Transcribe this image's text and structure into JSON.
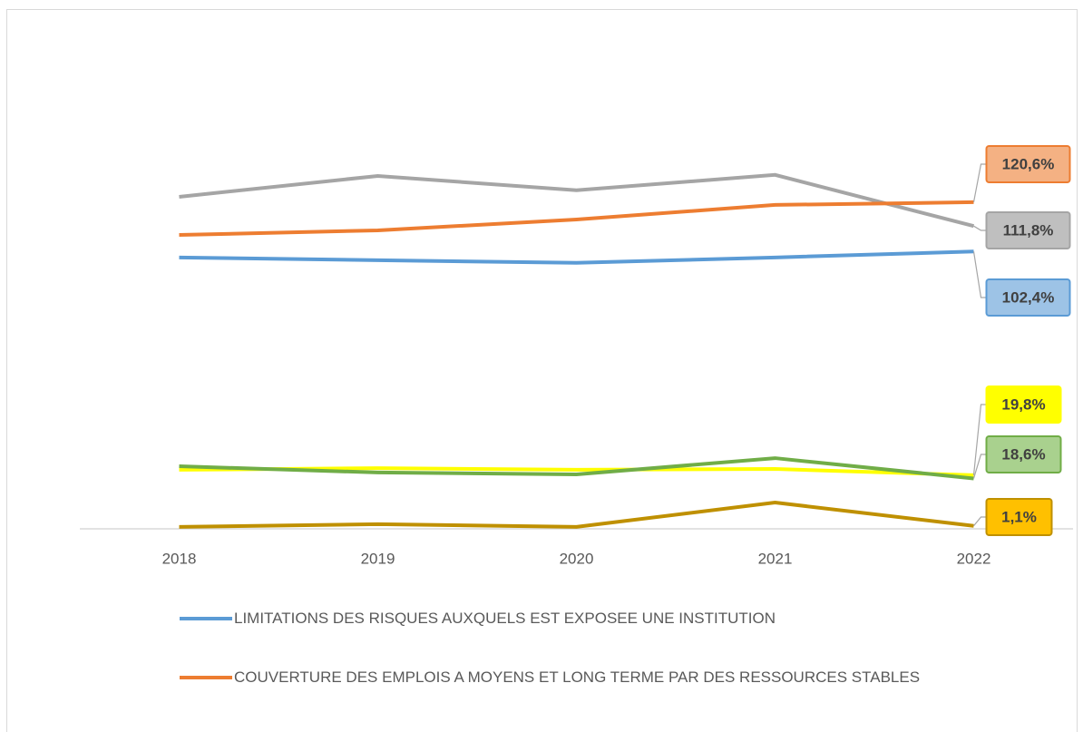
{
  "chart_data": {
    "type": "line",
    "categories": [
      "2018",
      "2019",
      "2020",
      "2021",
      "2022"
    ],
    "ylim": [
      0,
      140
    ],
    "series": [
      {
        "color": "#a5a5a5",
        "values": [
          122.6,
          130.3,
          125.0,
          130.7,
          111.8
        ],
        "value_labels": [
          null,
          null,
          null,
          null,
          "111,8%"
        ]
      },
      {
        "name": "COUVERTURE DES EMPLOIS A MOYENS ET LONG TERME PAR DES RESSOURCES STABLES",
        "color": "#ed7d31",
        "values": [
          108.5,
          110.2,
          114.2,
          119.6,
          120.6
        ],
        "value_labels": [
          null,
          null,
          null,
          null,
          "120,6%"
        ]
      },
      {
        "name": "LIMITATIONS DES RISQUES AUXQUELS EST EXPOSEE UNE INSTITUTION",
        "color": "#5b9bd5",
        "values": [
          100.2,
          99.2,
          98.2,
          100.2,
          102.4
        ],
        "value_labels": [
          null,
          null,
          null,
          null,
          "102,4%"
        ]
      },
      {
        "color": "#ffff00",
        "values": [
          21.8,
          22.4,
          21.8,
          22.1,
          19.8
        ],
        "value_labels": [
          null,
          null,
          null,
          null,
          "19,8%"
        ]
      },
      {
        "color": "#70ad47",
        "values": [
          23.1,
          20.8,
          20.1,
          26.1,
          18.6
        ],
        "value_labels": [
          null,
          null,
          null,
          null,
          "18,6%"
        ]
      },
      {
        "color": "#bf9000",
        "values": [
          0.7,
          1.7,
          0.7,
          9.7,
          1.1
        ],
        "value_labels": [
          null,
          null,
          null,
          null,
          "1,1%"
        ]
      }
    ]
  }
}
